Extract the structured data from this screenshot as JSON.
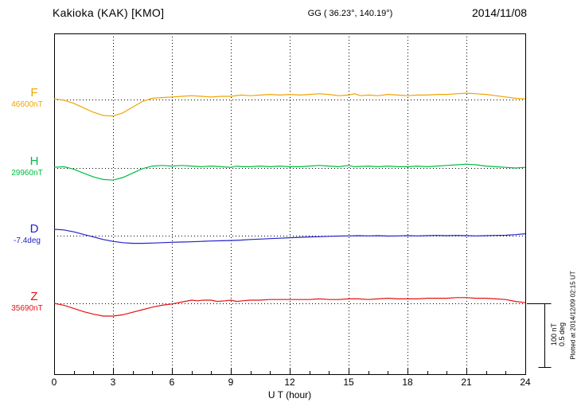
{
  "header": {
    "station": "Kakioka (KAK)  [KMO]",
    "coords": "GG ( 36.23°, 140.19°)",
    "date": "2014/11/08"
  },
  "axis": {
    "xlabel": "U T (hour)",
    "ticks": [
      "0",
      "3",
      "6",
      "9",
      "12",
      "15",
      "18",
      "21",
      "24"
    ]
  },
  "scale_bar": {
    "label_nt": "100 nT",
    "label_deg": "0.5 deg"
  },
  "footer": {
    "plotted_at": "Plotted at 2014/12/09 02:15 UT"
  },
  "chart_data": {
    "type": "line",
    "title": "Kakioka (KAK) [KMO] magnetogram, 2014/11/08",
    "xlabel": "U T (hour)",
    "x_range": [
      0,
      24
    ],
    "x_ticks": [
      0,
      3,
      6,
      9,
      12,
      15,
      18,
      21,
      24
    ],
    "grid": "dotted vertical lines every 3 hours; dotted horizontal baseline per component",
    "legend_position": "left margin, one colored label per trace",
    "scale": {
      "bar_nT": 100,
      "bar_deg": 0.5
    },
    "series": [
      {
        "name": "F",
        "unit": "nT",
        "baseline_label": "46600nT",
        "baseline_value": 46600,
        "color": "#efa400",
        "points": [
          [
            0,
            1
          ],
          [
            0.5,
            -1
          ],
          [
            1,
            -6
          ],
          [
            1.5,
            -13
          ],
          [
            2,
            -20
          ],
          [
            2.5,
            -25
          ],
          [
            3,
            -26
          ],
          [
            3.5,
            -21
          ],
          [
            4,
            -12
          ],
          [
            4.5,
            -3
          ],
          [
            5,
            2
          ],
          [
            5.5,
            3
          ],
          [
            6,
            4
          ],
          [
            6.5,
            5
          ],
          [
            7,
            6
          ],
          [
            7.5,
            5
          ],
          [
            8,
            4
          ],
          [
            8.5,
            5
          ],
          [
            9,
            5
          ],
          [
            9.5,
            7
          ],
          [
            10,
            6
          ],
          [
            10.5,
            7
          ],
          [
            11,
            8
          ],
          [
            11.5,
            7
          ],
          [
            12,
            8
          ],
          [
            12.5,
            7
          ],
          [
            13,
            8
          ],
          [
            13.5,
            9
          ],
          [
            14,
            8
          ],
          [
            14.5,
            6
          ],
          [
            15,
            7
          ],
          [
            15.3,
            9
          ],
          [
            15.6,
            6
          ],
          [
            16,
            7
          ],
          [
            16.5,
            6
          ],
          [
            17,
            8
          ],
          [
            17.5,
            7
          ],
          [
            18,
            6
          ],
          [
            18.5,
            7
          ],
          [
            19,
            7
          ],
          [
            19.5,
            8
          ],
          [
            20,
            8
          ],
          [
            20.5,
            9
          ],
          [
            21,
            10
          ],
          [
            21.5,
            9
          ],
          [
            22,
            8
          ],
          [
            22.5,
            6
          ],
          [
            23,
            4
          ],
          [
            23.5,
            2
          ],
          [
            24,
            1
          ]
        ]
      },
      {
        "name": "H",
        "unit": "nT",
        "baseline_label": "29960nT",
        "baseline_value": 29960,
        "color": "#00bb44",
        "points": [
          [
            0,
            1
          ],
          [
            0.5,
            2
          ],
          [
            1,
            -2
          ],
          [
            1.5,
            -8
          ],
          [
            2,
            -14
          ],
          [
            2.5,
            -18
          ],
          [
            3,
            -19
          ],
          [
            3.5,
            -15
          ],
          [
            4,
            -8
          ],
          [
            4.5,
            -1
          ],
          [
            5,
            3
          ],
          [
            5.5,
            4
          ],
          [
            6,
            3
          ],
          [
            6.5,
            4
          ],
          [
            7,
            3
          ],
          [
            7.5,
            2
          ],
          [
            8,
            3
          ],
          [
            8.5,
            2
          ],
          [
            9,
            1
          ],
          [
            9.3,
            3
          ],
          [
            9.6,
            2
          ],
          [
            10,
            2
          ],
          [
            10.5,
            3
          ],
          [
            11,
            2
          ],
          [
            11.5,
            3
          ],
          [
            12,
            2
          ],
          [
            12.5,
            2
          ],
          [
            13,
            3
          ],
          [
            13.5,
            4
          ],
          [
            14,
            3
          ],
          [
            14.5,
            2
          ],
          [
            15,
            4
          ],
          [
            15.3,
            2
          ],
          [
            16,
            3
          ],
          [
            16.5,
            2
          ],
          [
            17,
            3
          ],
          [
            17.5,
            2
          ],
          [
            18,
            2
          ],
          [
            18.5,
            3
          ],
          [
            19,
            2
          ],
          [
            19.5,
            3
          ],
          [
            20,
            4
          ],
          [
            20.5,
            5
          ],
          [
            21,
            6
          ],
          [
            21.5,
            5
          ],
          [
            22,
            3
          ],
          [
            22.5,
            2
          ],
          [
            23,
            1
          ],
          [
            23.5,
            0
          ],
          [
            24,
            1
          ]
        ]
      },
      {
        "name": "D",
        "unit": "deg",
        "baseline_label": "-7.4deg",
        "baseline_value": -7.4,
        "color": "#2222cc",
        "points": [
          [
            0,
            0.05
          ],
          [
            0.5,
            0.045
          ],
          [
            1,
            0.03
          ],
          [
            1.5,
            0.01
          ],
          [
            2,
            -0.01
          ],
          [
            2.5,
            -0.03
          ],
          [
            3,
            -0.045
          ],
          [
            3.5,
            -0.055
          ],
          [
            4,
            -0.06
          ],
          [
            4.5,
            -0.06
          ],
          [
            5,
            -0.058
          ],
          [
            5.5,
            -0.055
          ],
          [
            6,
            -0.052
          ],
          [
            6.5,
            -0.05
          ],
          [
            7,
            -0.048
          ],
          [
            7.5,
            -0.045
          ],
          [
            8,
            -0.042
          ],
          [
            8.5,
            -0.04
          ],
          [
            9,
            -0.038
          ],
          [
            9.5,
            -0.035
          ],
          [
            10,
            -0.03
          ],
          [
            10.5,
            -0.027
          ],
          [
            11,
            -0.023
          ],
          [
            11.5,
            -0.02
          ],
          [
            12,
            -0.016
          ],
          [
            12.5,
            -0.013
          ],
          [
            13,
            -0.01
          ],
          [
            13.5,
            -0.008
          ],
          [
            14,
            -0.005
          ],
          [
            14.5,
            -0.003
          ],
          [
            15,
            -0.002
          ],
          [
            15.5,
            0
          ],
          [
            16,
            -0.002
          ],
          [
            16.5,
            0
          ],
          [
            17,
            -0.003
          ],
          [
            17.5,
            -0.002
          ],
          [
            18,
            0
          ],
          [
            18.5,
            -0.002
          ],
          [
            19,
            0
          ],
          [
            19.5,
            0.002
          ],
          [
            20,
            0
          ],
          [
            20.5,
            0.002
          ],
          [
            21,
            0
          ],
          [
            21.5,
            -0.002
          ],
          [
            22,
            0
          ],
          [
            22.5,
            0.002
          ],
          [
            23,
            0.003
          ],
          [
            23.5,
            0.008
          ],
          [
            24,
            0.015
          ]
        ]
      },
      {
        "name": "Z",
        "unit": "nT",
        "baseline_label": "35690nT",
        "baseline_value": 35690,
        "color": "#e41212",
        "points": [
          [
            0,
            0
          ],
          [
            0.5,
            -3
          ],
          [
            1,
            -8
          ],
          [
            1.5,
            -13
          ],
          [
            2,
            -17
          ],
          [
            2.5,
            -20
          ],
          [
            3,
            -20
          ],
          [
            3.5,
            -18
          ],
          [
            4,
            -14
          ],
          [
            4.5,
            -10
          ],
          [
            5,
            -6
          ],
          [
            5.5,
            -3
          ],
          [
            6,
            -1
          ],
          [
            6.5,
            2
          ],
          [
            7,
            5
          ],
          [
            7.3,
            4
          ],
          [
            7.6,
            5
          ],
          [
            8,
            5
          ],
          [
            8.3,
            3
          ],
          [
            8.7,
            4
          ],
          [
            9,
            5
          ],
          [
            9.3,
            3
          ],
          [
            9.6,
            4
          ],
          [
            10,
            5
          ],
          [
            10.5,
            5
          ],
          [
            11,
            6
          ],
          [
            11.5,
            6
          ],
          [
            12,
            6
          ],
          [
            12.5,
            6
          ],
          [
            13,
            6
          ],
          [
            13.5,
            7
          ],
          [
            14,
            6
          ],
          [
            14.5,
            6
          ],
          [
            15,
            7
          ],
          [
            15.5,
            7
          ],
          [
            16,
            6
          ],
          [
            16.5,
            7
          ],
          [
            17,
            8
          ],
          [
            17.5,
            7
          ],
          [
            18,
            7
          ],
          [
            18.5,
            7
          ],
          [
            19,
            8
          ],
          [
            19.5,
            8
          ],
          [
            20,
            8
          ],
          [
            20.5,
            9
          ],
          [
            21,
            9
          ],
          [
            21.5,
            8
          ],
          [
            22,
            8
          ],
          [
            22.5,
            7
          ],
          [
            23,
            6
          ],
          [
            23.5,
            3
          ],
          [
            24,
            1
          ]
        ]
      }
    ]
  }
}
